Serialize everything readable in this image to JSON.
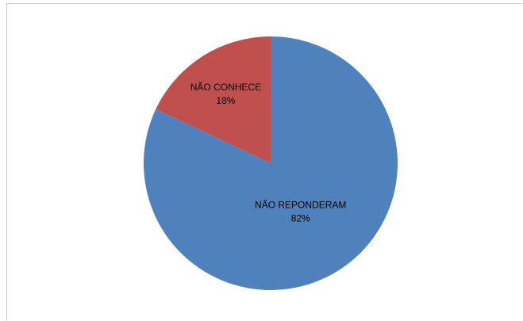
{
  "chart_data": {
    "type": "pie",
    "title": "",
    "slices": [
      {
        "name": "NÃO REPONDERAM",
        "value": 82,
        "label": "82%",
        "color": "#4f81bd"
      },
      {
        "name": "NÃO CONHECE",
        "value": 18,
        "label": "18%",
        "color": "#c0504d"
      }
    ],
    "start_angle_deg": 0,
    "direction": "clockwise",
    "legend": "none"
  }
}
